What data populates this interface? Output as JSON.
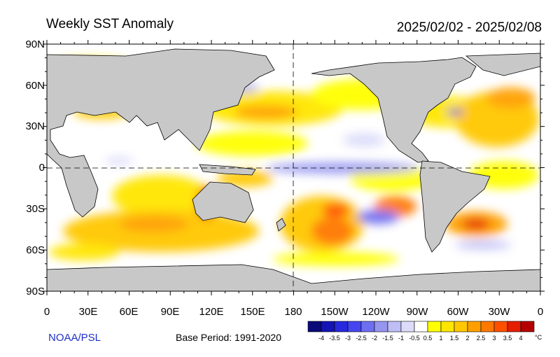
{
  "title": "Weekly SST Anomaly",
  "date_range": "2025/02/02 - 2025/02/08",
  "source_credit": "NOAA/PSL",
  "base_period": "Base Period: 1991-2020",
  "unit": "°C",
  "lat_labels": [
    "90N",
    "60N",
    "30N",
    "0",
    "30S",
    "60S",
    "90S"
  ],
  "lon_labels": [
    "0",
    "30E",
    "60E",
    "90E",
    "120E",
    "150E",
    "180",
    "150W",
    "120W",
    "90W",
    "60W",
    "30W",
    "0"
  ],
  "colorbar": {
    "labels": [
      "-4",
      "-3.5",
      "-3",
      "-2.5",
      "-2",
      "-1.5",
      "-1",
      "-0.5",
      "0.5",
      "1",
      "1.5",
      "2",
      "2.5",
      "3",
      "3.5",
      "4"
    ],
    "colors": [
      "#0a0a78",
      "#1414b4",
      "#2828dc",
      "#4646f0",
      "#6e6ef0",
      "#9696f0",
      "#bebef5",
      "#dcdcfa",
      "#ffffff",
      "#ffff00",
      "#ffe600",
      "#ffc800",
      "#ffa000",
      "#ff7800",
      "#ff5000",
      "#e61e00",
      "#b40000"
    ]
  },
  "colors": {
    "land": "#c8c8c8",
    "ocean_neutral": "#ffffff",
    "title_text": "#000000",
    "credit_text": "#1f2fc8"
  }
}
